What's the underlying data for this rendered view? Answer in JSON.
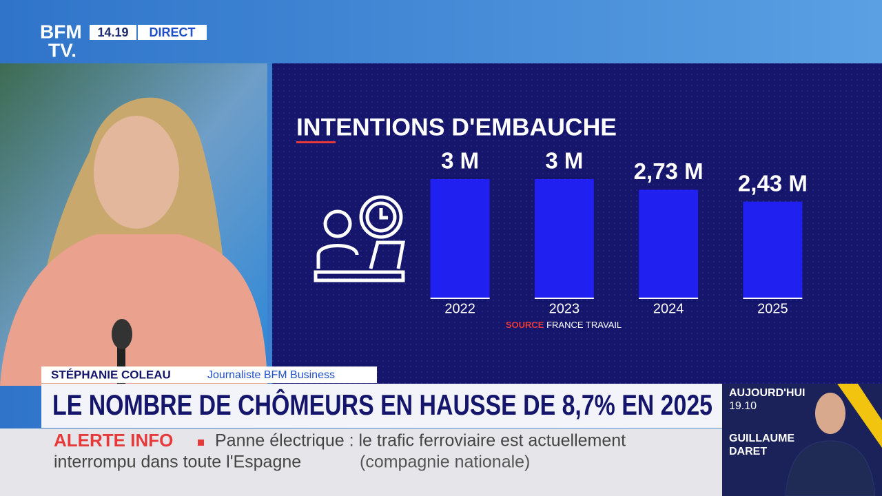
{
  "channel": {
    "logo_top": "BFM",
    "logo_bottom": "TV.",
    "time": "14.19",
    "status": "DIRECT"
  },
  "chart_data": {
    "type": "bar",
    "title": "INTENTIONS D'EMBAUCHE",
    "categories": [
      "2022",
      "2023",
      "2024",
      "2025"
    ],
    "values": [
      3,
      3,
      2.73,
      2.43
    ],
    "value_labels": [
      "3 M",
      "3 M",
      "2,73 M",
      "2,43 M"
    ],
    "color": "#2020f0",
    "source_label": "SOURCE",
    "source": "FRANCE TRAVAIL"
  },
  "lower_third": {
    "name": "STÉPHANIE COLEAU",
    "role": "Journaliste BFM Business"
  },
  "headline": "LE NOMBRE DE CHÔMEURS EN HAUSSE DE 8,7% EN 2025",
  "ticker": {
    "label": "ALERTE INFO",
    "lines": [
      "Panne électrique : le trafic ferroviaire est actuellement",
      "interrompu dans toute l'Espagne"
    ],
    "note": "(compagnie nationale)"
  },
  "next_show": {
    "label": "AUJOURD'HUI",
    "time": "19.10",
    "host_first": "GUILLAUME",
    "host_last": "DARET"
  }
}
